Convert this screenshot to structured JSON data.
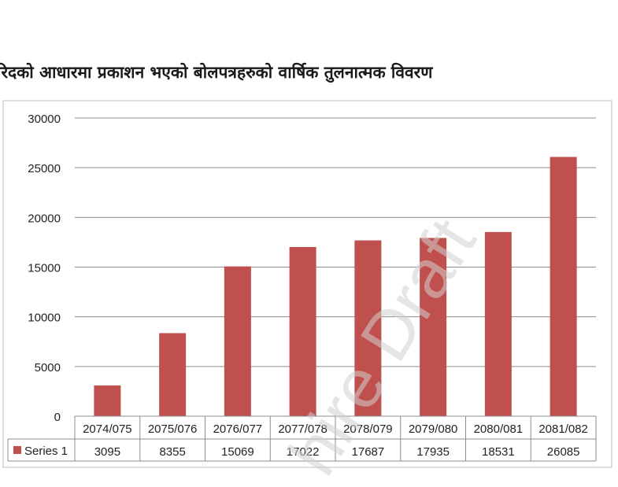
{
  "title": "रिदको आधारमा प्रकाशन भएको बोलपत्रहरुको वार्षिक तुलनात्मक विवरण",
  "watermark": "hire Draft",
  "chart_data": {
    "type": "bar",
    "title": "",
    "xlabel": "",
    "ylabel": "",
    "categories": [
      "2074/075",
      "2075/076",
      "2076/077",
      "2077/078",
      "2078/079",
      "2079/080",
      "2080/081",
      "2081/082"
    ],
    "series": [
      {
        "name": "Series 1",
        "color": "#c0504d",
        "values": [
          3095,
          8355,
          15069,
          17022,
          17687,
          17935,
          18531,
          26085
        ]
      }
    ],
    "ylim": [
      0,
      30000
    ],
    "yticks": [
      "0",
      "5000",
      "10000",
      "15000",
      "20000",
      "25000",
      "30000"
    ],
    "grid": true,
    "legend": "data-table-left",
    "data_table": true
  }
}
